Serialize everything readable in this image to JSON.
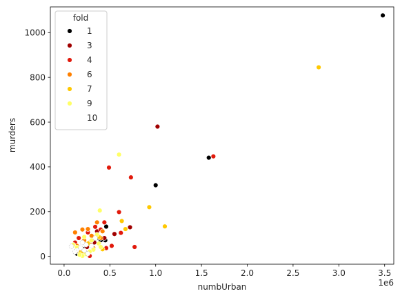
{
  "chart_data": {
    "type": "scatter",
    "title": "",
    "xlabel": "numbUrban",
    "ylabel": "murders",
    "x_offset_label": "1e6",
    "xlim": [
      -0.15,
      3.6
    ],
    "ylim": [
      -35,
      1115
    ],
    "x_ticks": [
      0.0,
      0.5,
      1.0,
      1.5,
      2.0,
      2.5,
      3.0,
      3.5
    ],
    "x_tick_labels": [
      "0.0",
      "0.5",
      "1.0",
      "1.5",
      "2.0",
      "2.5",
      "3.0",
      "3.5"
    ],
    "y_ticks": [
      0,
      200,
      400,
      600,
      800,
      1000
    ],
    "y_tick_labels": [
      "0",
      "200",
      "400",
      "600",
      "800",
      "1000"
    ],
    "grid": false,
    "legend": {
      "title": "fold",
      "placement": "top-left",
      "entries": [
        {
          "label": "1",
          "color": "#000000"
        },
        {
          "label": "3",
          "color": "#a00000"
        },
        {
          "label": "4",
          "color": "#e11a0c"
        },
        {
          "label": "6",
          "color": "#ff8000"
        },
        {
          "label": "7",
          "color": "#ffc800"
        },
        {
          "label": "9",
          "color": "#ffff66"
        },
        {
          "label": "10",
          "color": "#ffffff"
        }
      ]
    },
    "series": [
      {
        "name": "1",
        "color": "#000000",
        "points": [
          [
            3.48,
            1077
          ],
          [
            1.58,
            441
          ],
          [
            1.0,
            318
          ],
          [
            0.46,
            133
          ],
          [
            0.38,
            82
          ],
          [
            0.3,
            52
          ],
          [
            0.22,
            32
          ],
          [
            0.14,
            12
          ],
          [
            0.4,
            72
          ],
          [
            0.45,
            72
          ]
        ]
      },
      {
        "name": "3",
        "color": "#a00000",
        "points": [
          [
            1.02,
            580
          ],
          [
            0.72,
            130
          ],
          [
            0.55,
            100
          ],
          [
            0.44,
            82
          ],
          [
            0.33,
            62
          ],
          [
            0.25,
            42
          ],
          [
            0.18,
            27
          ],
          [
            0.36,
            112
          ],
          [
            0.29,
            57
          ]
        ]
      },
      {
        "name": "4",
        "color": "#e11a0c",
        "points": [
          [
            1.63,
            447
          ],
          [
            0.49,
            397
          ],
          [
            0.73,
            353
          ],
          [
            0.6,
            198
          ],
          [
            0.44,
            152
          ],
          [
            0.62,
            105
          ],
          [
            0.4,
            120
          ],
          [
            0.77,
            42
          ],
          [
            0.52,
            47
          ],
          [
            0.46,
            37
          ],
          [
            0.28,
            2
          ],
          [
            0.22,
            17
          ],
          [
            0.12,
            62
          ],
          [
            0.16,
            82
          ],
          [
            0.26,
            107
          ],
          [
            0.34,
            132
          ]
        ]
      },
      {
        "name": "6",
        "color": "#ff8000",
        "points": [
          [
            0.12,
            107
          ],
          [
            0.2,
            120
          ],
          [
            0.26,
            122
          ],
          [
            0.3,
            92
          ],
          [
            0.36,
            152
          ],
          [
            0.22,
            72
          ],
          [
            0.14,
            47
          ],
          [
            0.28,
            62
          ],
          [
            0.4,
            82
          ],
          [
            0.32,
            37
          ],
          [
            0.18,
            30
          ],
          [
            0.42,
            112
          ]
        ]
      },
      {
        "name": "7",
        "color": "#ffc800",
        "points": [
          [
            2.78,
            845
          ],
          [
            0.93,
            220
          ],
          [
            1.1,
            134
          ],
          [
            0.63,
            158
          ],
          [
            0.67,
            122
          ],
          [
            0.38,
            87
          ],
          [
            0.26,
            57
          ],
          [
            0.42,
            32
          ],
          [
            0.2,
            15
          ],
          [
            0.16,
            22
          ]
        ]
      },
      {
        "name": "9",
        "color": "#ffff66",
        "points": [
          [
            0.6,
            455
          ],
          [
            0.39,
            205
          ],
          [
            0.38,
            57
          ],
          [
            0.32,
            30
          ],
          [
            0.28,
            22
          ],
          [
            0.24,
            10
          ],
          [
            0.2,
            2
          ],
          [
            0.17,
            7
          ],
          [
            0.14,
            40
          ],
          [
            0.1,
            52
          ],
          [
            0.36,
            97
          ],
          [
            0.3,
            72
          ],
          [
            0.22,
            87
          ],
          [
            0.4,
            42
          ]
        ]
      },
      {
        "name": "10",
        "color": "#ffffff",
        "points": [
          [
            0.18,
            37
          ],
          [
            0.24,
            52
          ],
          [
            0.3,
            47
          ],
          [
            0.14,
            27
          ],
          [
            0.2,
            62
          ],
          [
            0.08,
            45
          ],
          [
            0.34,
            82
          ],
          [
            0.26,
            12
          ],
          [
            0.12,
            20
          ],
          [
            0.22,
            27
          ]
        ]
      }
    ]
  }
}
